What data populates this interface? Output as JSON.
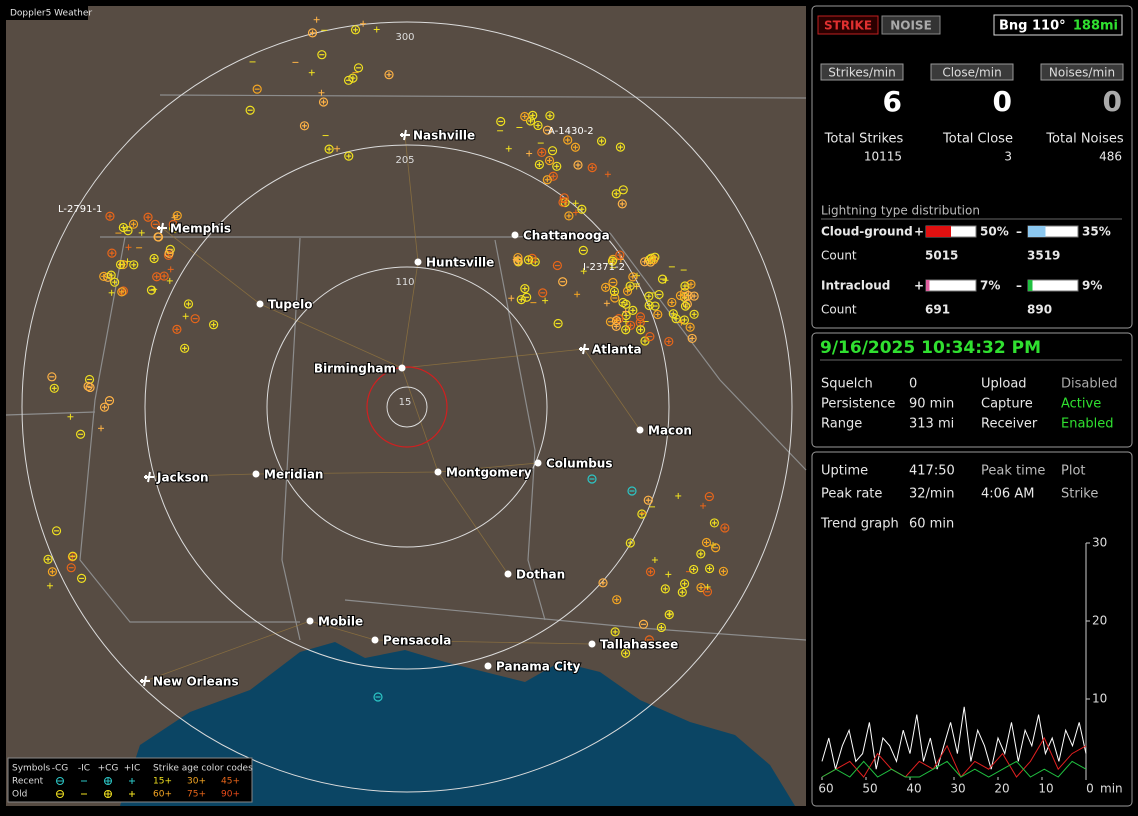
{
  "map": {
    "title": "Doppler5 Weather",
    "ring_labels": [
      "300",
      "205",
      "110",
      "15"
    ],
    "cities": [
      {
        "name": "Nashville",
        "icon": "airport"
      },
      {
        "name": "Memphis",
        "icon": "airport"
      },
      {
        "name": "Chattanooga",
        "icon": "dot"
      },
      {
        "name": "Huntsville",
        "icon": "dot"
      },
      {
        "name": "Tupelo",
        "icon": "dot"
      },
      {
        "name": "Birmingham",
        "icon": "dot"
      },
      {
        "name": "Atlanta",
        "icon": "airport"
      },
      {
        "name": "Macon",
        "icon": "dot"
      },
      {
        "name": "Jackson",
        "icon": "airport"
      },
      {
        "name": "Meridian",
        "icon": "dot"
      },
      {
        "name": "Montgomery",
        "icon": "dot"
      },
      {
        "name": "Columbus",
        "icon": "dot"
      },
      {
        "name": "Dothan",
        "icon": "dot"
      },
      {
        "name": "Mobile",
        "icon": "dot"
      },
      {
        "name": "Pensacola",
        "icon": "dot"
      },
      {
        "name": "Tallahassee",
        "icon": "dot"
      },
      {
        "name": "Panama City",
        "icon": "dot"
      },
      {
        "name": "New Orleans",
        "icon": "airport"
      }
    ],
    "strike_tags": [
      "L-2791-1",
      "A-1430-2",
      "I-2371-2"
    ],
    "legend": {
      "symbols": "Symbols",
      "columns": [
        "-CG",
        "-IC",
        "+CG",
        "+IC"
      ],
      "age_title": "Strike age color codes",
      "rows": [
        {
          "label": "Recent",
          "ages": [
            "15+",
            "30+",
            "45+"
          ]
        },
        {
          "label": "Old",
          "ages": [
            "60+",
            "75+",
            "90+"
          ]
        }
      ]
    }
  },
  "status": {
    "buttons": [
      "STRIKE",
      "NOISE"
    ],
    "bearing": "Bng 110°",
    "distance": "188mi",
    "rates": [
      {
        "label": "Strikes/min",
        "value": 6
      },
      {
        "label": "Close/min",
        "value": 0
      },
      {
        "label": "Noises/min",
        "value": 0
      }
    ],
    "totals": [
      {
        "label": "Total Strikes",
        "value": 10115
      },
      {
        "label": "Total Close",
        "value": 3
      },
      {
        "label": "Total Noises",
        "value": 486
      }
    ],
    "distribution": {
      "title": "Lightning type distribution",
      "rows": [
        {
          "label": "Cloud-ground",
          "positive": {
            "sign": "+",
            "value": 50,
            "label": "50%"
          },
          "negative": {
            "sign": "–",
            "value": 35,
            "label": "35%"
          },
          "count_label": "Count",
          "counts": [
            5015,
            3519
          ]
        },
        {
          "label": "Intracloud",
          "positive": {
            "sign": "+",
            "value": 7,
            "label": "7%"
          },
          "negative": {
            "sign": "–",
            "value": 9,
            "label": "9%"
          },
          "count_label": "Count",
          "counts": [
            691,
            890
          ]
        }
      ]
    }
  },
  "receiver": {
    "datetime": "9/16/2025 10:34:32 PM",
    "settings": [
      [
        "Squelch",
        "0",
        "Upload",
        "Disabled"
      ],
      [
        "Persistence",
        "90 min",
        "Capture",
        "Active"
      ],
      [
        "Range",
        "313 mi",
        "Receiver",
        "Enabled"
      ]
    ]
  },
  "stats": {
    "rows": [
      [
        "Uptime",
        "417:50",
        "Peak time",
        "Plot"
      ],
      [
        "Peak rate",
        "32/min",
        "4:06 AM",
        "Strike"
      ]
    ],
    "trend_label": "Trend graph",
    "trend_window": "60 min",
    "trend": {
      "xlim": [
        60,
        0
      ],
      "ylim": [
        0,
        30
      ],
      "xticks": [
        60,
        50,
        40,
        30,
        20,
        10,
        0
      ],
      "yticks": [
        10,
        20,
        30
      ],
      "x_unit": "min",
      "series": [
        {
          "color": "#ffffff",
          "values": [
            2,
            5,
            1,
            4,
            6,
            2,
            3,
            7,
            1,
            5,
            4,
            2,
            6,
            3,
            8,
            2,
            5,
            1,
            4,
            7,
            3,
            9,
            2,
            6,
            4,
            1,
            5,
            3,
            7,
            2,
            6,
            4,
            8,
            3,
            5,
            2,
            6,
            4,
            7,
            3
          ]
        },
        {
          "color": "#e02020",
          "values": [
            0,
            1,
            2,
            0,
            3,
            1,
            0,
            2,
            1,
            4,
            0,
            2,
            1,
            3,
            0,
            2,
            5,
            1,
            3,
            4
          ]
        },
        {
          "color": "#20c040",
          "values": [
            0,
            1,
            0,
            2,
            0,
            1,
            0,
            0,
            1,
            2,
            0,
            1,
            0,
            1,
            2,
            0,
            1,
            0,
            2,
            1
          ]
        }
      ]
    }
  }
}
